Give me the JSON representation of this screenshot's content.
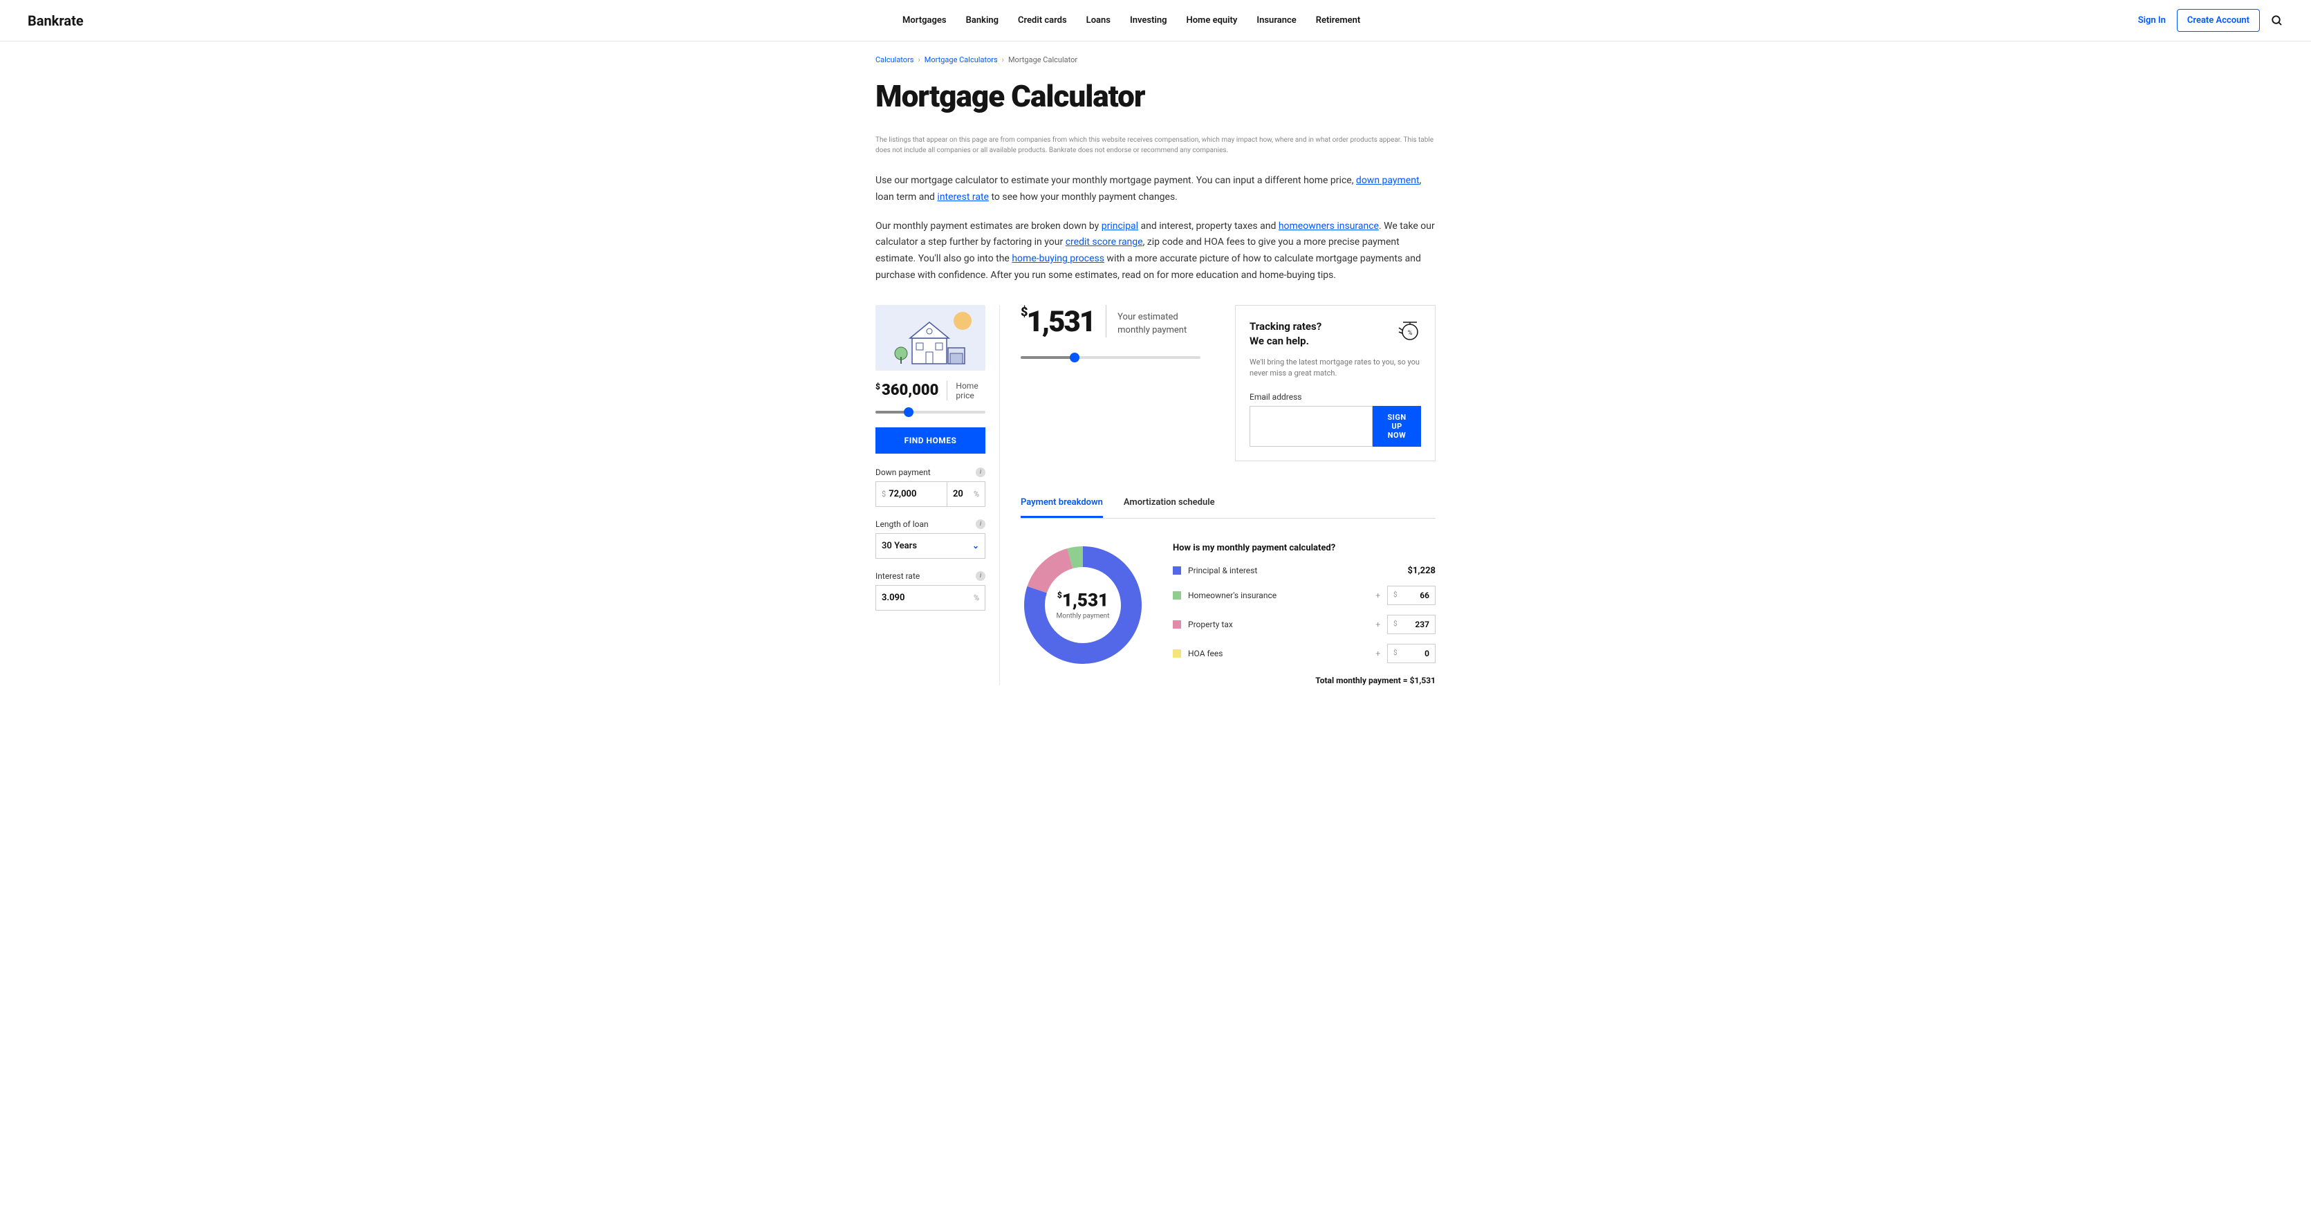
{
  "brand": "Bankrate",
  "nav": [
    "Mortgages",
    "Banking",
    "Credit cards",
    "Loans",
    "Investing",
    "Home equity",
    "Insurance",
    "Retirement"
  ],
  "auth": {
    "signin": "Sign In",
    "create": "Create Account"
  },
  "breadcrumb": [
    {
      "label": "Calculators",
      "link": true
    },
    {
      "label": "Mortgage Calculators",
      "link": true
    },
    {
      "label": "Mortgage Calculator",
      "link": false
    }
  ],
  "title": "Mortgage Calculator",
  "disclaimer": "The listings that appear on this page are from companies from which this website receives compensation, which may impact how, where and in what order products appear. This table does not include all companies or all available products. Bankrate does not endorse or recommend any companies.",
  "intro1_pre": "Use our mortgage calculator to estimate your monthly mortgage payment. You can input a different home price, ",
  "intro1_link1": "down payment",
  "intro1_mid": ", loan term and ",
  "intro1_link2": "interest rate",
  "intro1_post": " to see how your monthly payment changes.",
  "intro2_pre": "Our monthly payment estimates are broken down by ",
  "intro2_link1": "principal",
  "intro2_mid1": " and interest, property taxes and ",
  "intro2_link2": "homeowners insurance",
  "intro2_mid2": ". We take our calculator a step further by factoring in your ",
  "intro2_link3": "credit score range",
  "intro2_mid3": ", zip code and HOA fees to give you a more precise payment estimate. You'll also go into the ",
  "intro2_link4": "home-buying process",
  "intro2_post": " with a more accurate picture of how to calculate mortgage payments and purchase with confidence. After you run some estimates, read on for more education and home-buying tips.",
  "left": {
    "home_price": "360,000",
    "home_price_label": "Home price",
    "find_homes": "FIND HOMES",
    "down_label": "Down payment",
    "down_amount": "72,000",
    "down_pct": "20",
    "loan_label": "Length of loan",
    "loan_value": "30 Years",
    "rate_label": "Interest rate",
    "rate_value": "3.090",
    "slider_pct": 30
  },
  "payment": {
    "amount": "1,531",
    "label1": "Your estimated",
    "label2": "monthly payment",
    "slider_pct": 30
  },
  "tracking": {
    "title1": "Tracking rates?",
    "title2": "We can help.",
    "desc": "We'll bring the latest mortgage rates to you, so you never miss a great match.",
    "email_label": "Email address",
    "signup": "SIGN UP NOW"
  },
  "tabs": [
    "Payment breakdown",
    "Amortization schedule"
  ],
  "breakdown": {
    "title": "How is my monthly payment calculated?",
    "donut_amount": "1,531",
    "donut_label": "Monthly payment",
    "items": [
      {
        "color": "#5268e8",
        "label": "Principal & interest",
        "value": "$1,228",
        "editable": false
      },
      {
        "color": "#8fce8f",
        "label": "Homeowner's insurance",
        "value": "66",
        "editable": true
      },
      {
        "color": "#e08ba8",
        "label": "Property tax",
        "value": "237",
        "editable": true
      },
      {
        "color": "#f5e476",
        "label": "HOA fees",
        "value": "0",
        "editable": true
      }
    ],
    "total": "Total monthly payment = $1,531",
    "donut": [
      {
        "color": "#5268e8",
        "pct": 80.2
      },
      {
        "color": "#e08ba8",
        "pct": 15.5
      },
      {
        "color": "#8fce8f",
        "pct": 4.3
      },
      {
        "color": "#f5e476",
        "pct": 0
      }
    ]
  }
}
